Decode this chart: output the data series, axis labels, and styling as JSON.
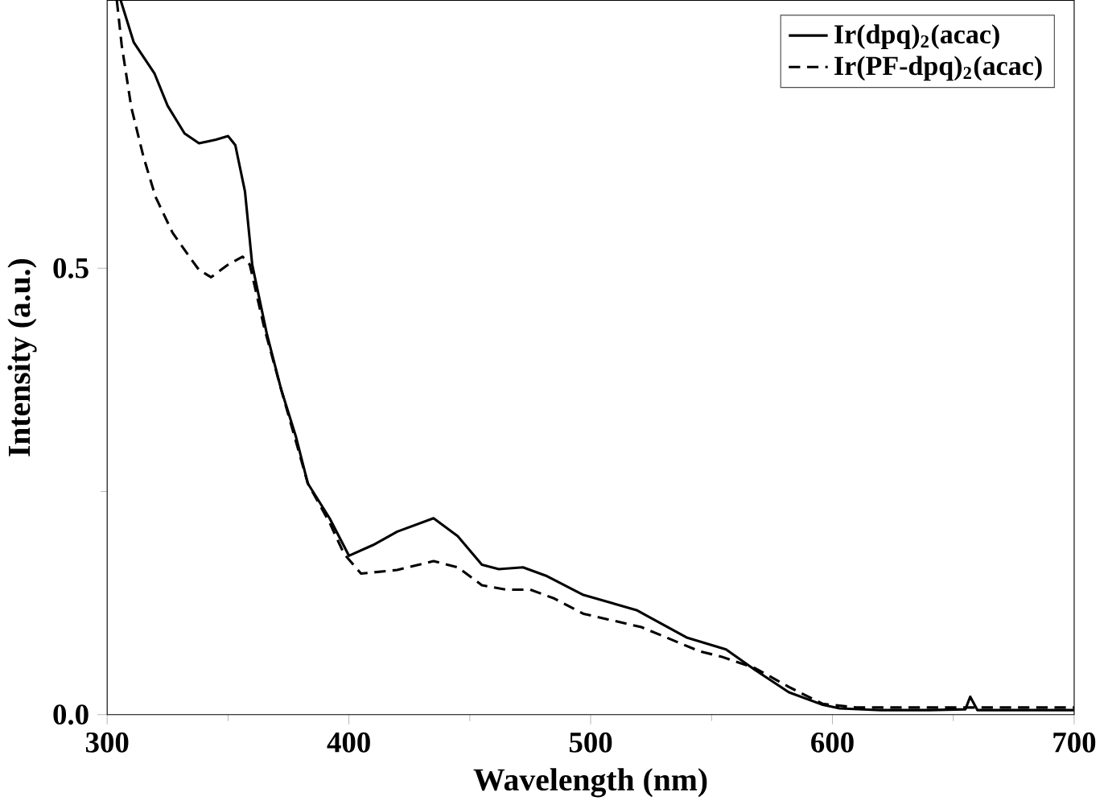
{
  "chart_data": {
    "type": "line",
    "xlabel": "Wavelength (nm)",
    "ylabel": "Intensity (a.u.)",
    "xlim": [
      300,
      700
    ],
    "ylim": [
      0,
      0.8
    ],
    "xticks": [
      300,
      400,
      500,
      600,
      700
    ],
    "yticks": [
      {
        "value": 0,
        "label": "0.0"
      },
      0.5
    ],
    "legend": "top right",
    "grid": false,
    "marker": "none",
    "series": [
      {
        "name": "Ir(dpq)$_{2}$(acac)",
        "color": "#000000",
        "line_style": "solid",
        "x": [
          305.6,
          311,
          319.6,
          325,
          332,
          338,
          345,
          350,
          353,
          357,
          360,
          366,
          372,
          378,
          383,
          392,
          400,
          410,
          420,
          435,
          445,
          455,
          462,
          472,
          482,
          497,
          519,
          540,
          556,
          568,
          582,
          596,
          603,
          620,
          640,
          655,
          657,
          660,
          680,
          700
        ],
        "values": [
          0.8,
          0.753,
          0.718,
          0.682,
          0.651,
          0.64,
          0.644,
          0.648,
          0.638,
          0.586,
          0.504,
          0.427,
          0.364,
          0.312,
          0.259,
          0.22,
          0.178,
          0.19,
          0.205,
          0.22,
          0.2,
          0.168,
          0.163,
          0.165,
          0.155,
          0.134,
          0.117,
          0.086,
          0.073,
          0.05,
          0.025,
          0.011,
          0.007,
          0.005,
          0.005,
          0.006,
          0.02,
          0.005,
          0.005,
          0.005
        ]
      },
      {
        "name": "Ir(PF-dpq)$_{2}$(acac)",
        "color": "#000000",
        "line_style": "dashed",
        "x": [
          304,
          306,
          310,
          315,
          320,
          327,
          334,
          338,
          343,
          350,
          356,
          359,
          365,
          372,
          383,
          392,
          398,
          405,
          420,
          435,
          445,
          455,
          465,
          475,
          485,
          497,
          521,
          545,
          554,
          568,
          582,
          596,
          610,
          640,
          670,
          700
        ],
        "values": [
          0.8,
          0.75,
          0.68,
          0.625,
          0.58,
          0.54,
          0.513,
          0.498,
          0.49,
          0.504,
          0.513,
          0.504,
          0.433,
          0.364,
          0.259,
          0.215,
          0.18,
          0.158,
          0.162,
          0.172,
          0.165,
          0.145,
          0.14,
          0.14,
          0.13,
          0.113,
          0.098,
          0.071,
          0.065,
          0.052,
          0.031,
          0.012,
          0.008,
          0.008,
          0.008,
          0.008
        ]
      }
    ]
  }
}
